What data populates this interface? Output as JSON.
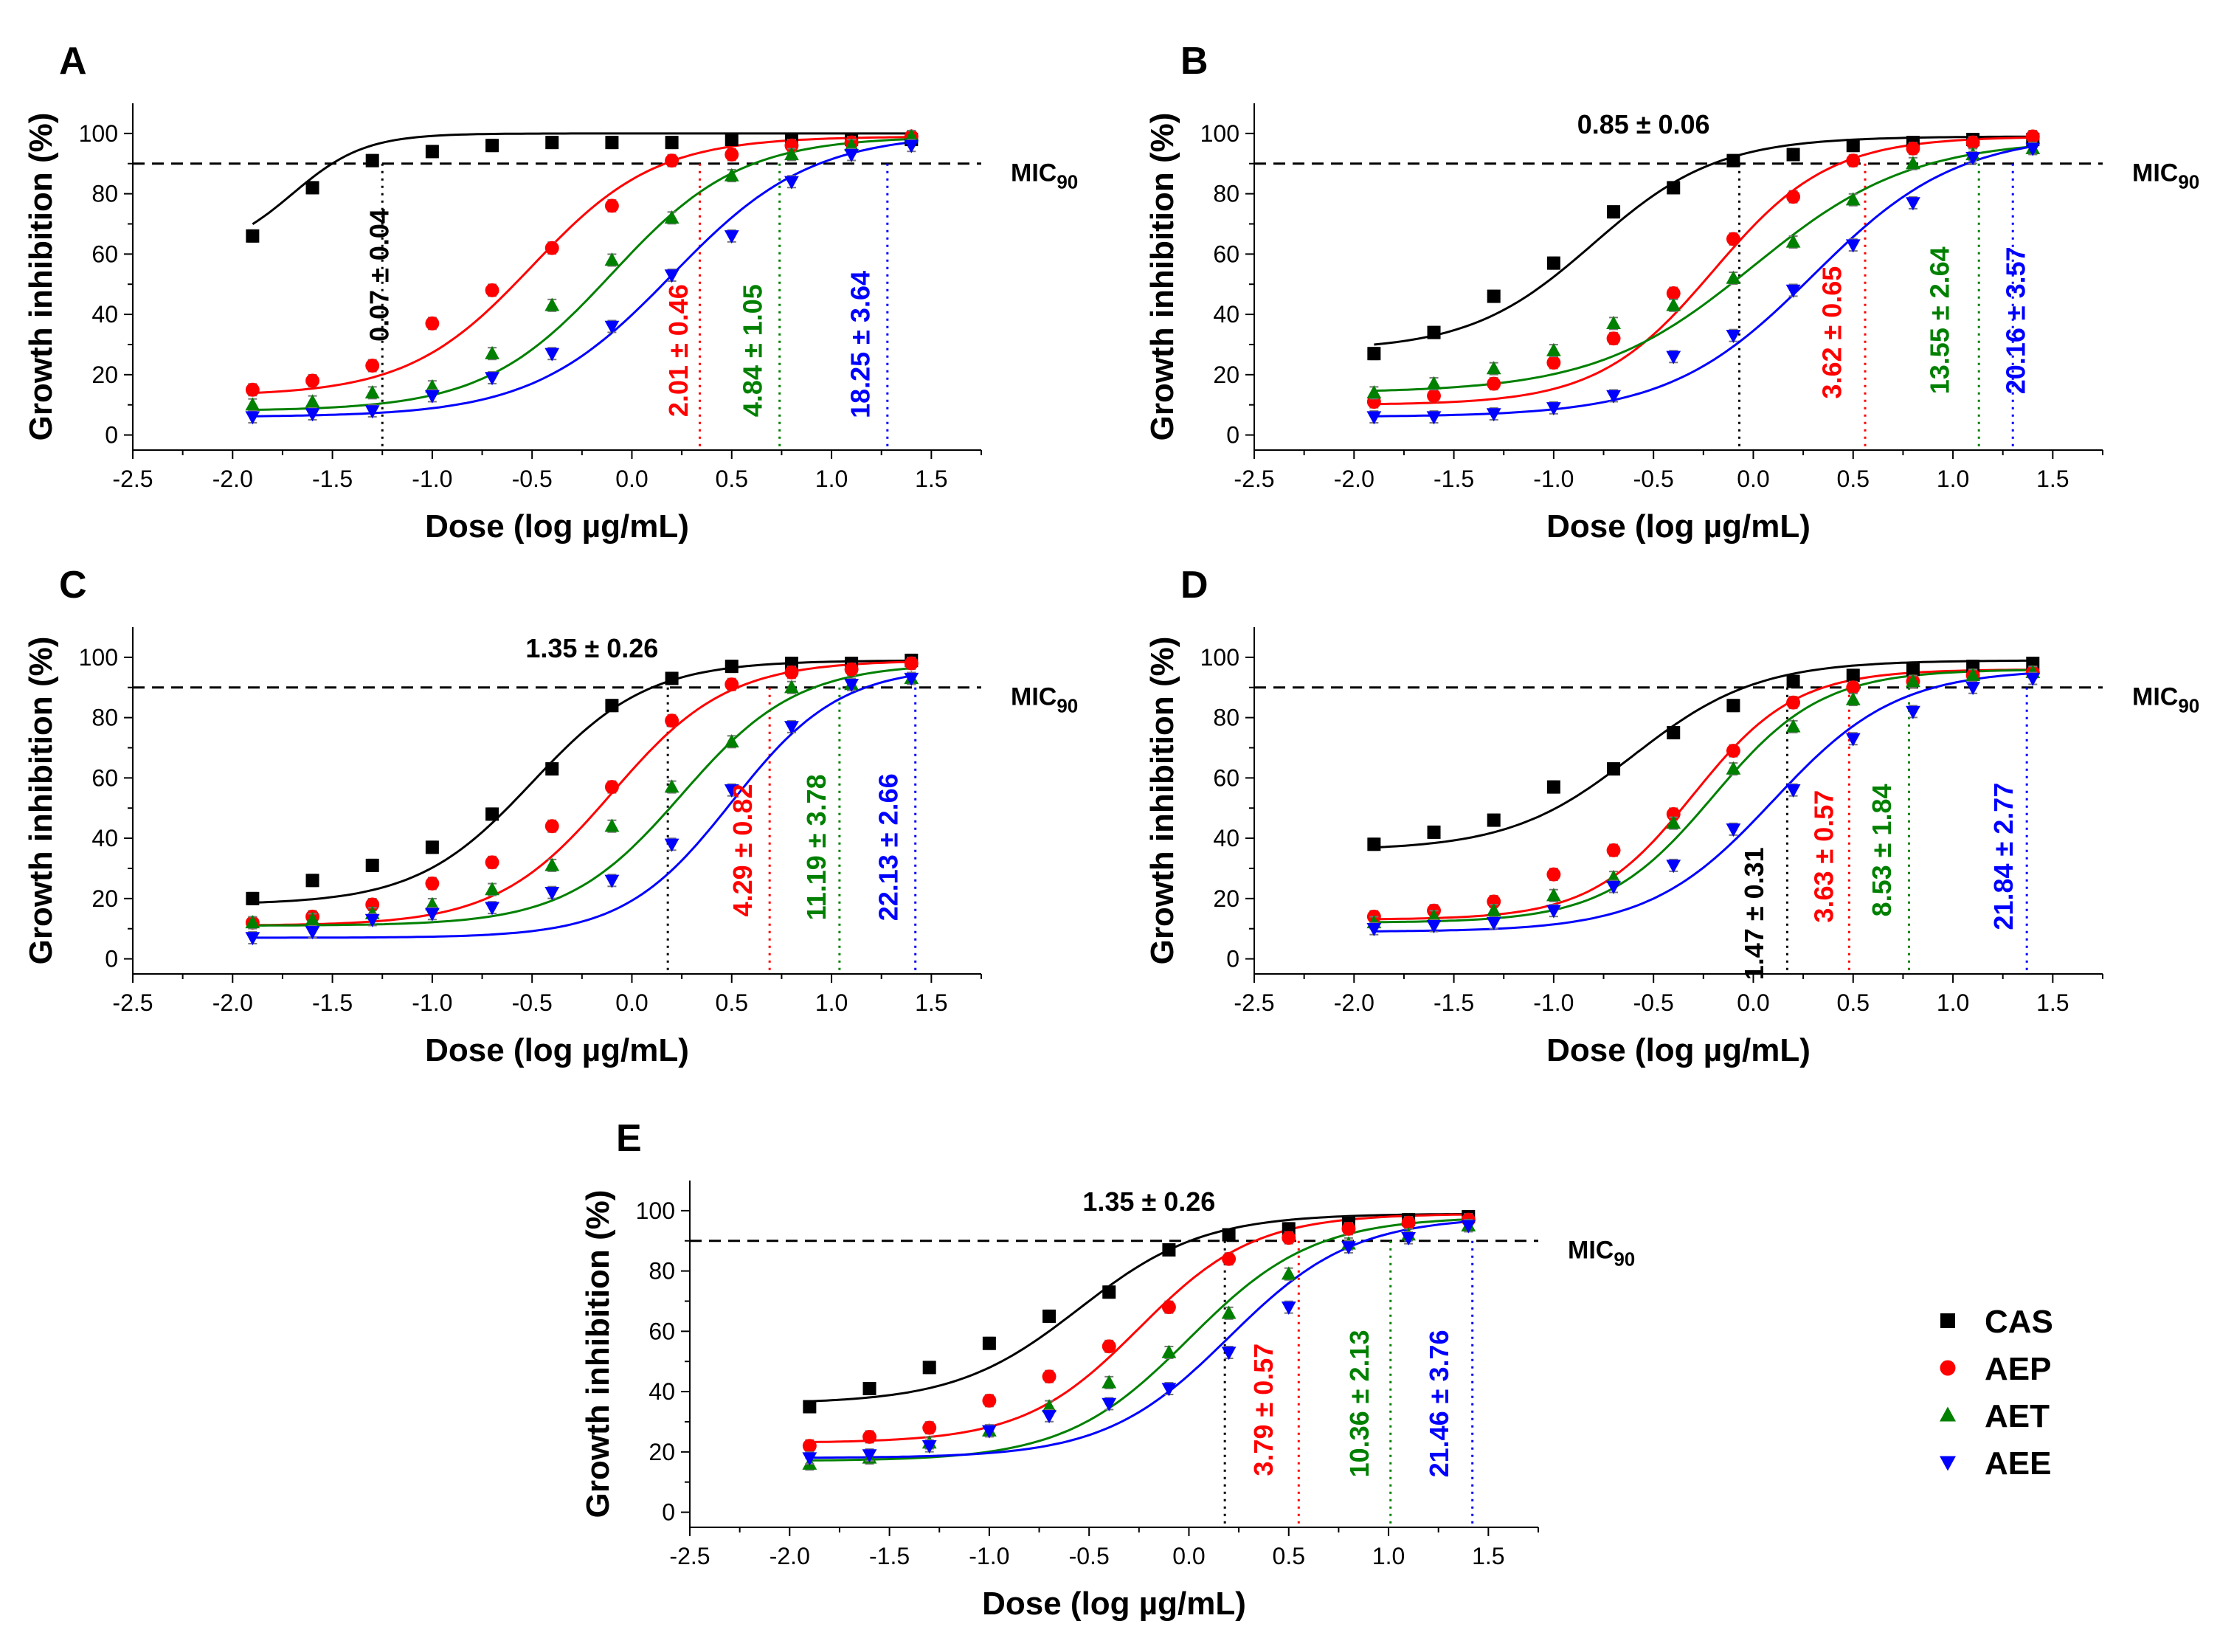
{
  "chart_data": {
    "type": "scatter",
    "x": [
      -1.9,
      -1.6,
      -1.3,
      -1.0,
      -0.7,
      -0.4,
      -0.1,
      0.2,
      0.5,
      0.8,
      1.1,
      1.4
    ],
    "xlabel": "Dose (log µg/mL)",
    "ylabel": "Growth inhibition (%)",
    "xlim": [
      -2.5,
      1.75
    ],
    "ylim": [
      -5,
      110
    ],
    "xticks": [
      "-2.5",
      "-2.0",
      "-1.5",
      "-1.0",
      "-0.5",
      "0.0",
      "0.5",
      "1.0",
      "1.5"
    ],
    "yticks": [
      "0",
      "20",
      "40",
      "60",
      "80",
      "100"
    ],
    "threshold": {
      "label": "MIC",
      "subscript": "90",
      "value": 90
    },
    "series_meta": [
      {
        "name": "CAS",
        "color": "#000000",
        "marker": "square"
      },
      {
        "name": "AEP",
        "color": "#ff0000",
        "marker": "circle"
      },
      {
        "name": "AET",
        "color": "#008000",
        "marker": "triangle-up"
      },
      {
        "name": "AEE",
        "color": "#0000ff",
        "marker": "triangle-down"
      }
    ],
    "panels": [
      {
        "label": "A",
        "series": [
          {
            "name": "CAS",
            "values": [
              66,
              82,
              91,
              94,
              96,
              97,
              97,
              97,
              98,
              98,
              98,
              98
            ],
            "fit": [
              60,
              100,
              -1.7,
              2.4
            ]
          },
          {
            "name": "AEP",
            "values": [
              15,
              18,
              23,
              37,
              48,
              62,
              76,
              91,
              93,
              96,
              97,
              99
            ],
            "fit": [
              13,
              99,
              -0.5,
              1.4
            ]
          },
          {
            "name": "AET",
            "values": [
              10,
              11,
              14,
              16,
              27,
              43,
              58,
              72,
              86,
              93,
              96,
              99
            ],
            "fit": [
              8,
              99,
              -0.1,
              1.35
            ]
          },
          {
            "name": "AEE",
            "values": [
              6,
              7,
              8,
              13,
              19,
              27,
              36,
              53,
              66,
              84,
              93,
              96
            ],
            "fit": [
              6,
              100,
              0.2,
              1.25
            ]
          }
        ],
        "annotations": [
          {
            "text": "0.07 ± 0.04",
            "color": "#000000",
            "x": -1.22,
            "y": 53,
            "rotate": true
          },
          {
            "text": "2.01 ± 0.46",
            "color": "#ff0000",
            "x": 0.28,
            "y": 28,
            "rotate": true
          },
          {
            "text": "4.84 ± 1.05",
            "color": "#008000",
            "x": 0.65,
            "y": 28,
            "rotate": true
          },
          {
            "text": "18.25 ± 3.64",
            "color": "#0000ff",
            "x": 1.19,
            "y": 30,
            "rotate": true
          }
        ],
        "mic_lines": [
          {
            "color": "#000000",
            "x": -1.25
          },
          {
            "color": "#ff0000",
            "x": 0.34
          },
          {
            "color": "#008000",
            "x": 0.74
          },
          {
            "color": "#0000ff",
            "x": 1.28
          }
        ]
      },
      {
        "label": "B",
        "series": [
          {
            "name": "CAS",
            "values": [
              27,
              34,
              46,
              57,
              74,
              82,
              91,
              93,
              96,
              97,
              98,
              98
            ],
            "fit": [
              28,
              99,
              -0.8,
              1.4
            ]
          },
          {
            "name": "AEP",
            "values": [
              11,
              13,
              17,
              24,
              32,
              47,
              65,
              79,
              91,
              95,
              97,
              99
            ],
            "fit": [
              10,
              99,
              -0.2,
              1.5
            ]
          },
          {
            "name": "AET",
            "values": [
              14,
              17,
              22,
              28,
              37,
              43,
              52,
              64,
              78,
              90,
              93,
              95
            ],
            "fit": [
              14,
              98,
              0.0,
              1.1
            ]
          },
          {
            "name": "AEE",
            "values": [
              6,
              6,
              7,
              9,
              13,
              26,
              33,
              48,
              63,
              77,
              92,
              95
            ],
            "fit": [
              6,
              100,
              0.3,
              1.2
            ]
          }
        ],
        "annotations": [
          {
            "text": "0.85 ± 0.06",
            "color": "#000000",
            "x": -0.55,
            "y": 100,
            "rotate": false
          },
          {
            "text": "3.62 ± 0.65",
            "color": "#ff0000",
            "x": 0.44,
            "y": 34,
            "rotate": true
          },
          {
            "text": "13.55 ± 2.64",
            "color": "#008000",
            "x": 0.98,
            "y": 38,
            "rotate": true
          },
          {
            "text": "20.16 ± 3.57",
            "color": "#0000ff",
            "x": 1.36,
            "y": 38,
            "rotate": true
          }
        ],
        "mic_lines": [
          {
            "color": "#000000",
            "x": -0.07
          },
          {
            "color": "#ff0000",
            "x": 0.56
          },
          {
            "color": "#008000",
            "x": 1.13
          },
          {
            "color": "#0000ff",
            "x": 1.3
          }
        ]
      },
      {
        "label": "C",
        "series": [
          {
            "name": "CAS",
            "values": [
              20,
              26,
              31,
              37,
              48,
              63,
              84,
              93,
              97,
              98,
              98,
              99
            ],
            "fit": [
              18,
              99,
              -0.5,
              1.5
            ]
          },
          {
            "name": "AEP",
            "values": [
              12,
              14,
              18,
              25,
              32,
              44,
              57,
              79,
              91,
              95,
              96,
              98
            ],
            "fit": [
              11,
              99,
              -0.1,
              1.5
            ]
          },
          {
            "name": "AET",
            "values": [
              12,
              13,
              15,
              18,
              23,
              31,
              44,
              57,
              72,
              90,
              91,
              93
            ],
            "fit": [
              11,
              98,
              0.25,
              1.5
            ]
          },
          {
            "name": "AEE",
            "values": [
              7,
              9,
              13,
              15,
              17,
              22,
              26,
              38,
              56,
              77,
              91,
              93
            ],
            "fit": [
              7,
              97,
              0.5,
              1.6
            ]
          }
        ],
        "annotations": [
          {
            "text": "1.35 ± 0.26",
            "color": "#000000",
            "x": -0.2,
            "y": 100,
            "rotate": false
          },
          {
            "text": "4.29 ± 0.82",
            "color": "#ff0000",
            "x": 0.6,
            "y": 36,
            "rotate": true
          },
          {
            "text": "11.19 ± 3.78",
            "color": "#008000",
            "x": 0.97,
            "y": 37,
            "rotate": true
          },
          {
            "text": "22.13 ± 2.66",
            "color": "#0000ff",
            "x": 1.33,
            "y": 37,
            "rotate": true
          }
        ],
        "mic_lines": [
          {
            "color": "#000000",
            "x": 0.18
          },
          {
            "color": "#ff0000",
            "x": 0.69
          },
          {
            "color": "#008000",
            "x": 1.04
          },
          {
            "color": "#0000ff",
            "x": 1.42
          }
        ]
      },
      {
        "label": "D",
        "series": [
          {
            "name": "CAS",
            "values": [
              38,
              42,
              46,
              57,
              63,
              75,
              84,
              92,
              94,
              96,
              97,
              98
            ],
            "fit": [
              36,
              99,
              -0.6,
              1.4
            ]
          },
          {
            "name": "AEP",
            "values": [
              14,
              16,
              19,
              28,
              36,
              48,
              69,
              85,
              90,
              92,
              94,
              95
            ],
            "fit": [
              13,
              96,
              -0.3,
              1.7
            ]
          },
          {
            "name": "AET",
            "values": [
              12,
              14,
              16,
              21,
              27,
              45,
              63,
              77,
              86,
              92,
              94,
              95
            ],
            "fit": [
              12,
              96,
              -0.2,
              1.6
            ]
          },
          {
            "name": "AEE",
            "values": [
              10,
              11,
              12,
              16,
              24,
              31,
              43,
              56,
              73,
              82,
              90,
              93
            ],
            "fit": [
              9,
              96,
              0.1,
              1.4
            ]
          }
        ],
        "annotations": [
          {
            "text": "1.47 ± 0.31",
            "color": "#000000",
            "x": 0.05,
            "y": 15,
            "rotate": true
          },
          {
            "text": "3.63 ± 0.57",
            "color": "#ff0000",
            "x": 0.4,
            "y": 34,
            "rotate": true
          },
          {
            "text": "8.53 ± 1.84",
            "color": "#008000",
            "x": 0.69,
            "y": 36,
            "rotate": true
          },
          {
            "text": "21.84 ± 2.77",
            "color": "#0000ff",
            "x": 1.3,
            "y": 34,
            "rotate": true
          }
        ],
        "mic_lines": [
          {
            "color": "#000000",
            "x": 0.17
          },
          {
            "color": "#ff0000",
            "x": 0.48
          },
          {
            "color": "#008000",
            "x": 0.78
          },
          {
            "color": "#0000ff",
            "x": 1.37
          }
        ]
      },
      {
        "label": "E",
        "series": [
          {
            "name": "CAS",
            "values": [
              35,
              41,
              48,
              56,
              65,
              73,
              87,
              92,
              94,
              96,
              97,
              98
            ],
            "fit": [
              36,
              99,
              -0.55,
              1.4
            ]
          },
          {
            "name": "AEP",
            "values": [
              22,
              25,
              28,
              37,
              45,
              55,
              68,
              84,
              91,
              94,
              96,
              97
            ],
            "fit": [
              23,
              99,
              -0.25,
              1.5
            ]
          },
          {
            "name": "AET",
            "values": [
              16,
              18,
              23,
              27,
              35,
              43,
              53,
              66,
              79,
              89,
              92,
              95
            ],
            "fit": [
              17,
              98,
              0.0,
              1.4
            ]
          },
          {
            "name": "AEE",
            "values": [
              18,
              19,
              22,
              27,
              32,
              36,
              41,
              53,
              68,
              88,
              91,
              95
            ],
            "fit": [
              18,
              98,
              0.2,
              1.4
            ]
          }
        ],
        "annotations": [
          {
            "text": "1.35 ± 0.26",
            "color": "#000000",
            "x": -0.2,
            "y": 100,
            "rotate": false
          },
          {
            "text": "3.79 ± 0.57",
            "color": "#ff0000",
            "x": 0.42,
            "y": 34,
            "rotate": true
          },
          {
            "text": "10.36 ± 2.13",
            "color": "#008000",
            "x": 0.9,
            "y": 36,
            "rotate": true
          },
          {
            "text": "21.46 ± 3.76",
            "color": "#0000ff",
            "x": 1.3,
            "y": 36,
            "rotate": true
          }
        ],
        "mic_lines": [
          {
            "color": "#000000",
            "x": 0.18
          },
          {
            "color": "#ff0000",
            "x": 0.55
          },
          {
            "color": "#008000",
            "x": 1.01
          },
          {
            "color": "#0000ff",
            "x": 1.42
          }
        ]
      }
    ]
  },
  "legend": [
    {
      "name": "CAS",
      "color": "#000000",
      "marker": "square"
    },
    {
      "name": "AEP",
      "color": "#ff0000",
      "marker": "circle"
    },
    {
      "name": "AET",
      "color": "#008000",
      "marker": "triangle-up"
    },
    {
      "name": "AEE",
      "color": "#0000ff",
      "marker": "triangle-down"
    }
  ]
}
